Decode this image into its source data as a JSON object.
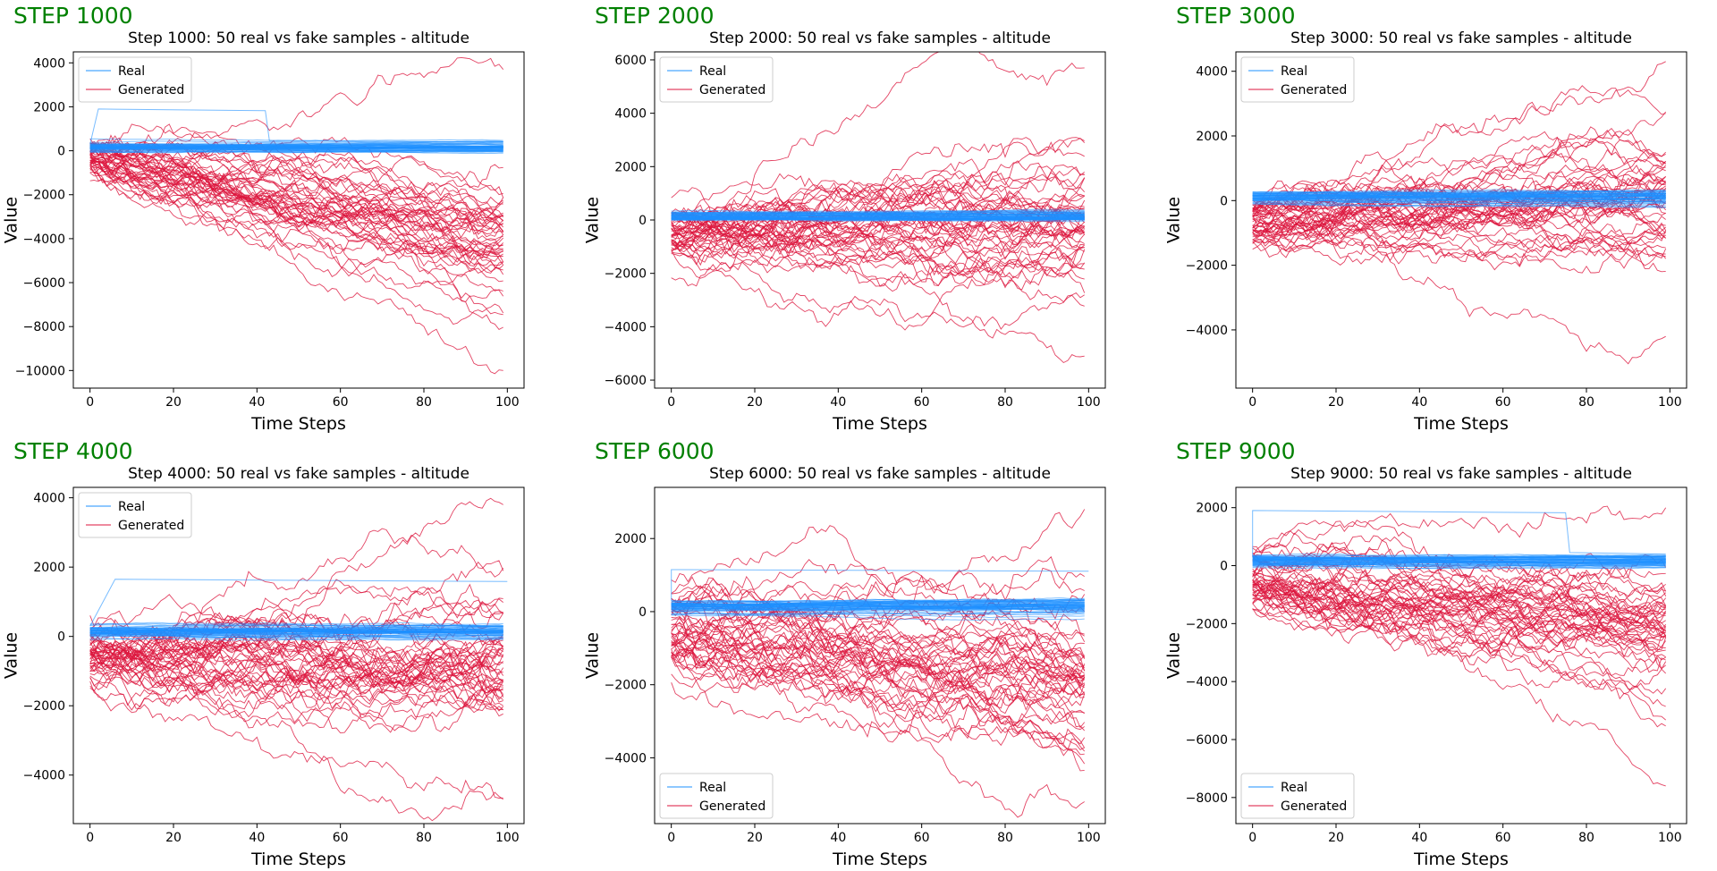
{
  "panels": [
    {
      "step_label": "STEP 1000"
    },
    {
      "step_label": "STEP 2000"
    },
    {
      "step_label": "STEP 3000"
    },
    {
      "step_label": "STEP 4000"
    },
    {
      "step_label": "STEP 6000"
    },
    {
      "step_label": "STEP 9000"
    }
  ],
  "chart_data": [
    {
      "type": "line",
      "title": "Step 1000: 50 real vs fake samples - altitude",
      "xlabel": "Time Steps",
      "ylabel": "Value",
      "xlim": [
        -4,
        104
      ],
      "ylim": [
        -10800,
        4500
      ],
      "xticks": [
        0,
        20,
        40,
        60,
        80,
        100
      ],
      "yticks": [
        4000,
        2000,
        0,
        -2000,
        -4000,
        -6000,
        -8000,
        -10000
      ],
      "ytick_labels": [
        "4000",
        "2000",
        "0",
        "−2000",
        "−4000",
        "−6000",
        "−8000",
        "−10000"
      ],
      "legend": {
        "position": "upper-left",
        "entries": [
          "Real",
          "Generated"
        ]
      },
      "series": [
        {
          "name": "Real",
          "color": "#1e90ff",
          "count": 50,
          "center": 150,
          "spread": 220,
          "outliers": [
            {
              "x0": 2,
              "x1": 42,
              "level": 1900
            }
          ]
        },
        {
          "name": "Generated",
          "color": "#dc143c",
          "count": 50,
          "start": -300,
          "start_spread": 900,
          "end_mean": -4000,
          "end_spread": 3200,
          "volatility": 320,
          "end_min": -10000,
          "end_max": 3700
        }
      ]
    },
    {
      "type": "line",
      "title": "Step 2000: 50 real vs fake samples - altitude",
      "xlabel": "Time Steps",
      "ylabel": "Value",
      "xlim": [
        -4,
        104
      ],
      "ylim": [
        -6300,
        6300
      ],
      "xticks": [
        0,
        20,
        40,
        60,
        80,
        100
      ],
      "yticks": [
        6000,
        4000,
        2000,
        0,
        -2000,
        -4000,
        -6000
      ],
      "ytick_labels": [
        "6000",
        "4000",
        "2000",
        "0",
        "−2000",
        "−4000",
        "−6000"
      ],
      "legend": {
        "position": "upper-left",
        "entries": [
          "Real",
          "Generated"
        ]
      },
      "series": [
        {
          "name": "Real",
          "color": "#1e90ff",
          "count": 50,
          "center": 150,
          "spread": 160,
          "outliers": []
        },
        {
          "name": "Generated",
          "color": "#dc143c",
          "count": 50,
          "start": -400,
          "start_spread": 1000,
          "end_mean": -200,
          "end_spread": 3200,
          "volatility": 300,
          "end_min": -5100,
          "end_max": 5700
        }
      ]
    },
    {
      "type": "line",
      "title": "Step 3000: 50 real vs fake samples - altitude",
      "xlabel": "Time Steps",
      "ylabel": "Value",
      "xlim": [
        -4,
        104
      ],
      "ylim": [
        -5800,
        4600
      ],
      "xticks": [
        0,
        20,
        40,
        60,
        80,
        100
      ],
      "yticks": [
        4000,
        2000,
        0,
        -2000,
        -4000
      ],
      "ytick_labels": [
        "4000",
        "2000",
        "0",
        "−2000",
        "−4000"
      ],
      "legend": {
        "position": "upper-left",
        "entries": [
          "Real",
          "Generated"
        ]
      },
      "series": [
        {
          "name": "Real",
          "color": "#1e90ff",
          "count": 50,
          "center": 120,
          "spread": 200,
          "outliers": []
        },
        {
          "name": "Generated",
          "color": "#dc143c",
          "count": 50,
          "start": -600,
          "start_spread": 800,
          "end_mean": -200,
          "end_spread": 2300,
          "volatility": 230,
          "end_min": -4200,
          "end_max": 4300
        }
      ]
    },
    {
      "type": "line",
      "title": "Step 4000: 50 real vs fake samples - altitude",
      "xlabel": "Time Steps",
      "ylabel": "Value",
      "xlim": [
        -4,
        104
      ],
      "ylim": [
        -5400,
        4300
      ],
      "xticks": [
        0,
        20,
        40,
        60,
        80,
        100
      ],
      "yticks": [
        4000,
        2000,
        0,
        -2000,
        -4000
      ],
      "ytick_labels": [
        "4000",
        "2000",
        "0",
        "−2000",
        "−4000"
      ],
      "legend": {
        "position": "upper-left",
        "entries": [
          "Real",
          "Generated"
        ]
      },
      "series": [
        {
          "name": "Real",
          "color": "#1e90ff",
          "count": 50,
          "center": 150,
          "spread": 200,
          "outliers": [
            {
              "x0": 6,
              "x1": 100,
              "level": 1650
            }
          ]
        },
        {
          "name": "Generated",
          "color": "#dc143c",
          "count": 50,
          "start": -500,
          "start_spread": 800,
          "end_mean": -700,
          "end_spread": 2400,
          "volatility": 250,
          "end_min": -4700,
          "end_max": 3800
        }
      ]
    },
    {
      "type": "line",
      "title": "Step 6000: 50 real vs fake samples - altitude",
      "xlabel": "Time Steps",
      "ylabel": "Value",
      "xlim": [
        -4,
        104
      ],
      "ylim": [
        -5800,
        3400
      ],
      "xticks": [
        0,
        20,
        40,
        60,
        80,
        100
      ],
      "yticks": [
        2000,
        0,
        -2000,
        -4000
      ],
      "ytick_labels": [
        "2000",
        "0",
        "−2000",
        "−4000"
      ],
      "legend": {
        "position": "lower-left",
        "entries": [
          "Real",
          "Generated"
        ]
      },
      "series": [
        {
          "name": "Real",
          "color": "#1e90ff",
          "count": 50,
          "center": 150,
          "spread": 200,
          "outliers": [
            {
              "x0": 0,
              "x1": 100,
              "level": 1150
            }
          ]
        },
        {
          "name": "Generated",
          "color": "#dc143c",
          "count": 50,
          "start": -500,
          "start_spread": 1100,
          "end_mean": -1800,
          "end_spread": 2300,
          "volatility": 250,
          "end_min": -5200,
          "end_max": 2800
        }
      ]
    },
    {
      "type": "line",
      "title": "Step 9000: 50 real vs fake samples - altitude",
      "xlabel": "Time Steps",
      "ylabel": "Value",
      "xlim": [
        -4,
        104
      ],
      "ylim": [
        -8900,
        2700
      ],
      "xticks": [
        0,
        20,
        40,
        60,
        80,
        100
      ],
      "yticks": [
        2000,
        0,
        -2000,
        -4000,
        -6000,
        -8000
      ],
      "ytick_labels": [
        "2000",
        "0",
        "−2000",
        "−4000",
        "−6000",
        "−8000"
      ],
      "legend": {
        "position": "lower-left",
        "entries": [
          "Real",
          "Generated"
        ]
      },
      "series": [
        {
          "name": "Real",
          "color": "#1e90ff",
          "count": 50,
          "center": 150,
          "spread": 200,
          "outliers": [
            {
              "x0": 0,
              "x1": 75,
              "level": 1900
            }
          ]
        },
        {
          "name": "Generated",
          "color": "#dc143c",
          "count": 50,
          "start": -700,
          "start_spread": 1200,
          "end_mean": -2300,
          "end_spread": 2400,
          "volatility": 270,
          "end_min": -7600,
          "end_max": 2000
        }
      ]
    }
  ]
}
